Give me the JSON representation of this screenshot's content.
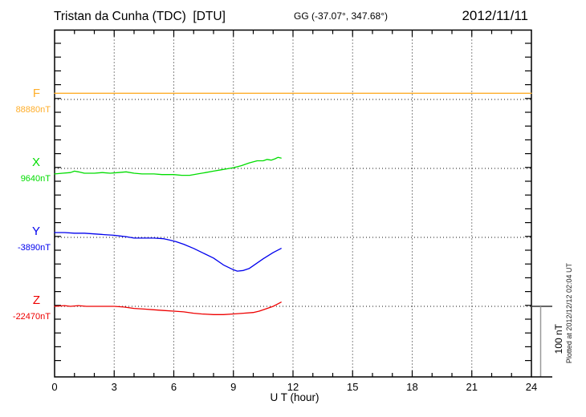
{
  "header": {
    "title": "Tristan da Cunha (TDC)  [DTU]",
    "coordinates": "GG (-37.07°, 347.68°)",
    "date": "2012/11/11"
  },
  "footer": {
    "plotted_at": "Plotted at 2012/12/12 02:04 UT"
  },
  "chart_data": {
    "type": "line",
    "title": "Magnetogram Tristan da Cunha (TDC) 2012/11/11",
    "xlabel": "U T (hour)",
    "x_range": [
      0,
      24
    ],
    "x_ticks": [
      0,
      3,
      6,
      9,
      12,
      15,
      18,
      21,
      24
    ],
    "x_minor_tick_step_hours": 1,
    "y_minor_tick_nT": 20,
    "grid": "dotted vertical lines every 3 hours; dotted horizontal line at each component baseline",
    "legend_position": "left margin, one colored label per component",
    "scale_bar": {
      "label": "100 nT",
      "nT": 100
    },
    "components": [
      {
        "id": "F",
        "label": "F",
        "baseline_label": "88880nT",
        "baseline_nT": 88880,
        "color": "#FFAE2A",
        "points": [
          [
            0,
            88889
          ],
          [
            4,
            88889
          ],
          [
            8,
            88889
          ],
          [
            12,
            88889
          ],
          [
            16,
            88889
          ],
          [
            20,
            88889
          ],
          [
            24,
            88889
          ]
        ]
      },
      {
        "id": "X",
        "label": "X",
        "baseline_label": "9640nT",
        "baseline_nT": 9640,
        "color": "#00DD00",
        "points": [
          [
            0,
            9632
          ],
          [
            0.4,
            9633
          ],
          [
            0.8,
            9634
          ],
          [
            1,
            9636
          ],
          [
            1.2,
            9635
          ],
          [
            1.5,
            9633
          ],
          [
            2,
            9633
          ],
          [
            2.4,
            9634
          ],
          [
            2.8,
            9633
          ],
          [
            3.2,
            9634
          ],
          [
            3.6,
            9635
          ],
          [
            4,
            9633
          ],
          [
            4.4,
            9632
          ],
          [
            5,
            9632
          ],
          [
            5.4,
            9631
          ],
          [
            6,
            9631
          ],
          [
            6.4,
            9630
          ],
          [
            6.8,
            9630
          ],
          [
            7.2,
            9632
          ],
          [
            7.6,
            9634
          ],
          [
            8,
            9636
          ],
          [
            8.4,
            9638
          ],
          [
            8.8,
            9640
          ],
          [
            9,
            9641
          ],
          [
            9.4,
            9644
          ],
          [
            9.8,
            9648
          ],
          [
            10.2,
            9651
          ],
          [
            10.5,
            9651
          ],
          [
            10.7,
            9653
          ],
          [
            10.9,
            9652
          ],
          [
            11.1,
            9654
          ],
          [
            11.25,
            9656
          ],
          [
            11.4,
            9655
          ]
        ]
      },
      {
        "id": "Y",
        "label": "Y",
        "baseline_label": "-3890nT",
        "baseline_nT": -3890,
        "color": "#0000EE",
        "points": [
          [
            0,
            -3883
          ],
          [
            0.5,
            -3883
          ],
          [
            1,
            -3884
          ],
          [
            1.5,
            -3884
          ],
          [
            2,
            -3885
          ],
          [
            2.5,
            -3886
          ],
          [
            3,
            -3887
          ],
          [
            3.3,
            -3888
          ],
          [
            3.6,
            -3889
          ],
          [
            4,
            -3891
          ],
          [
            4.5,
            -3891
          ],
          [
            5,
            -3891
          ],
          [
            5.5,
            -3892
          ],
          [
            5.8,
            -3894
          ],
          [
            6.1,
            -3896
          ],
          [
            6.5,
            -3900
          ],
          [
            7,
            -3906
          ],
          [
            7.5,
            -3913
          ],
          [
            8,
            -3920
          ],
          [
            8.5,
            -3930
          ],
          [
            9,
            -3937
          ],
          [
            9.2,
            -3939
          ],
          [
            9.5,
            -3938
          ],
          [
            9.8,
            -3935
          ],
          [
            10,
            -3931
          ],
          [
            10.5,
            -3921
          ],
          [
            11,
            -3912
          ],
          [
            11.4,
            -3906
          ]
        ]
      },
      {
        "id": "Z",
        "label": "Z",
        "baseline_label": "-22470nT",
        "baseline_nT": -22470,
        "color": "#EE0000",
        "points": [
          [
            0,
            -22470
          ],
          [
            0.5,
            -22469
          ],
          [
            0.8,
            -22470
          ],
          [
            1.2,
            -22469
          ],
          [
            1.6,
            -22470
          ],
          [
            2,
            -22470
          ],
          [
            2.5,
            -22470
          ],
          [
            3,
            -22470
          ],
          [
            3.5,
            -22471
          ],
          [
            4,
            -22473
          ],
          [
            4.5,
            -22474
          ],
          [
            5,
            -22475
          ],
          [
            5.5,
            -22476
          ],
          [
            6,
            -22477
          ],
          [
            6.5,
            -22478
          ],
          [
            7,
            -22480
          ],
          [
            7.4,
            -22481
          ],
          [
            8,
            -22482
          ],
          [
            8.5,
            -22482
          ],
          [
            9,
            -22481
          ],
          [
            9.5,
            -22480
          ],
          [
            10,
            -22479
          ],
          [
            10.3,
            -22477
          ],
          [
            10.7,
            -22473
          ],
          [
            11,
            -22470
          ],
          [
            11.2,
            -22467
          ],
          [
            11.4,
            -22464
          ]
        ]
      }
    ]
  }
}
